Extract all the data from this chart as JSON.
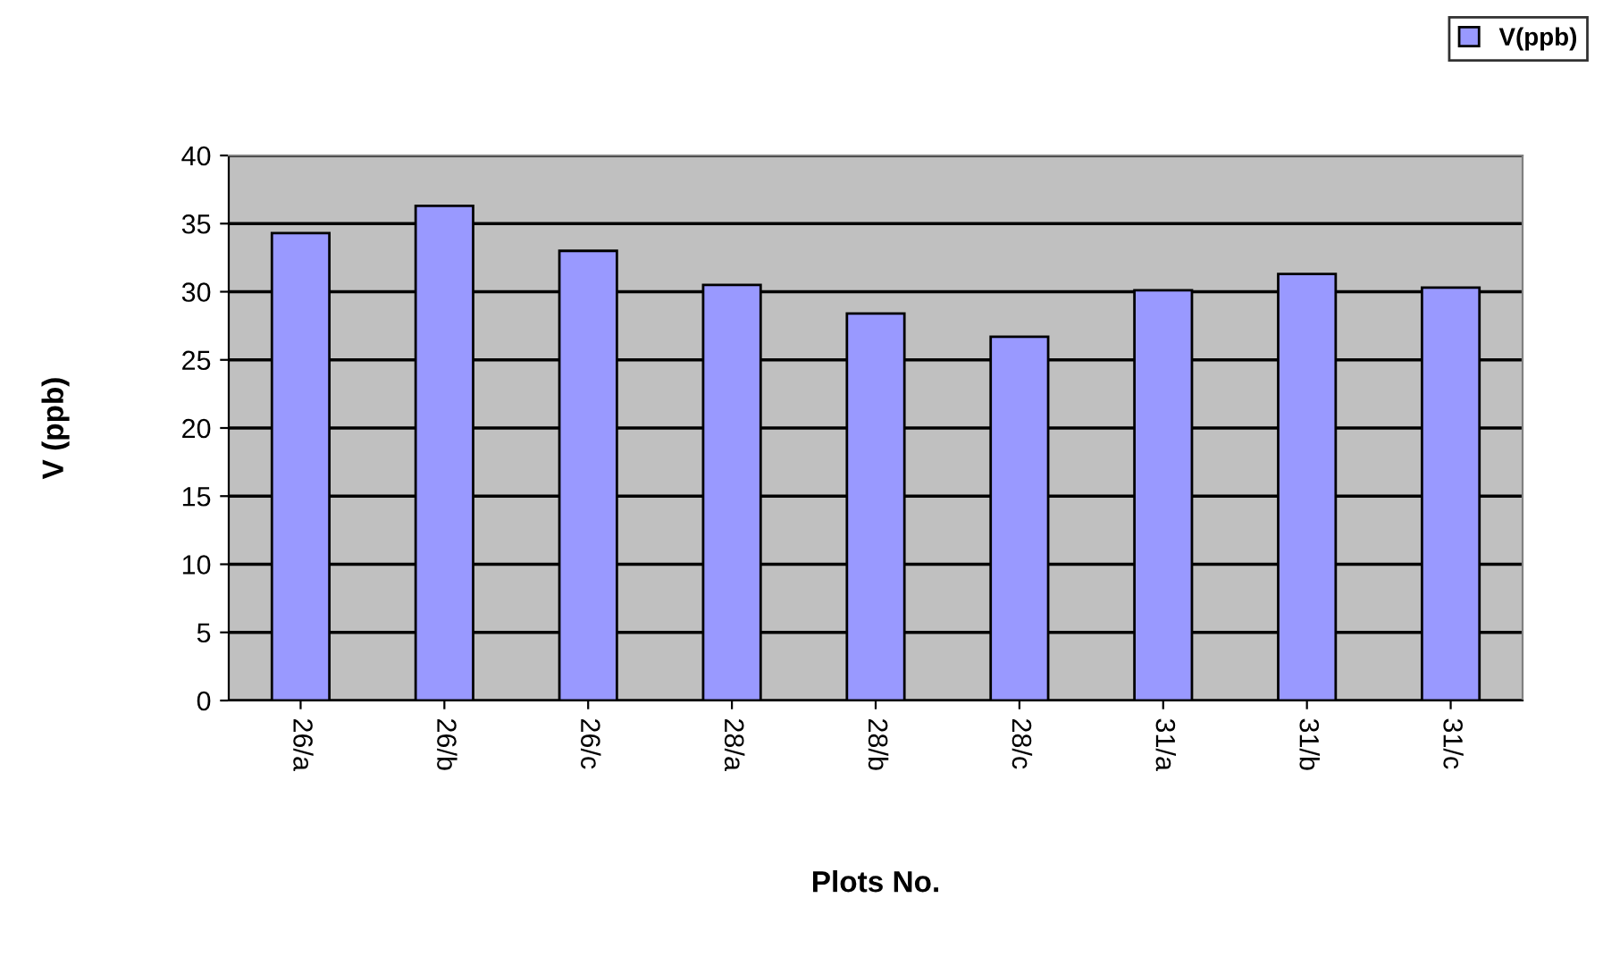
{
  "chart_data": {
    "type": "bar",
    "xlabel": "Plots No.",
    "ylabel": "V (ppb)",
    "categories": [
      "26/a",
      "26/b",
      "26/c",
      "28/a",
      "28/b",
      "28/c",
      "31/a",
      "31/b",
      "31/c"
    ],
    "series": [
      {
        "name": "V(ppb)",
        "color": "#9999ff",
        "values": [
          34.3,
          36.3,
          33.0,
          30.5,
          28.4,
          26.7,
          30.1,
          31.3,
          30.3
        ]
      }
    ],
    "ylim": [
      0,
      40
    ],
    "yticks": [
      0,
      5,
      10,
      15,
      20,
      25,
      30,
      35,
      40
    ],
    "grid": "y",
    "legend": "top right"
  }
}
